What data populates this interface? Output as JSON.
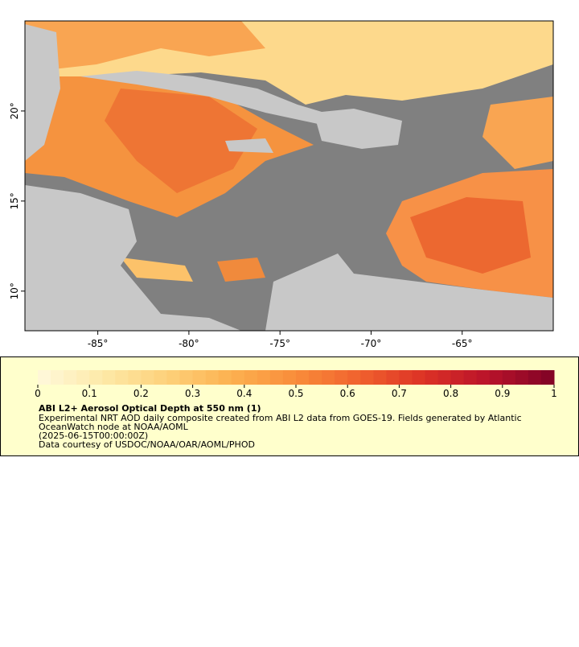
{
  "map": {
    "lon_range": [
      -89,
      -60
    ],
    "lat_range": [
      7.8,
      25
    ],
    "lon_ticks": [
      {
        "value": -85,
        "label": "-85°"
      },
      {
        "value": -80,
        "label": "-80°"
      },
      {
        "value": -75,
        "label": "-75°"
      },
      {
        "value": -70,
        "label": "-70°"
      },
      {
        "value": -65,
        "label": "-65°"
      }
    ],
    "lat_ticks": [
      {
        "value": 10,
        "label": "10°"
      },
      {
        "value": 15,
        "label": "15°"
      },
      {
        "value": 20,
        "label": "20°"
      }
    ]
  },
  "legend": {
    "range": [
      0,
      1
    ],
    "ticks": [
      0,
      0.1,
      0.2,
      0.3,
      0.4,
      0.5,
      0.6,
      0.7,
      0.8,
      0.9,
      1
    ],
    "colors": [
      "#fff8dc",
      "#fde9a8",
      "#fdd17a",
      "#fcb150",
      "#f98c3a",
      "#f0612e",
      "#dc3125",
      "#b8122a",
      "#7f0326"
    ],
    "title": "ABI L2+ Aerosol Optical Depth at 550 nm (1)",
    "lines": [
      "Experimental NRT AOD daily composite created from ABI L2 data from GOES-19. Fields generated by Atlantic",
      "OceanWatch node at NOAA/AOML",
      "(2025-06-15T00:00:00Z)",
      "Data courtesy of USDOC/NOAA/OAR/AOML/PHOD"
    ]
  }
}
